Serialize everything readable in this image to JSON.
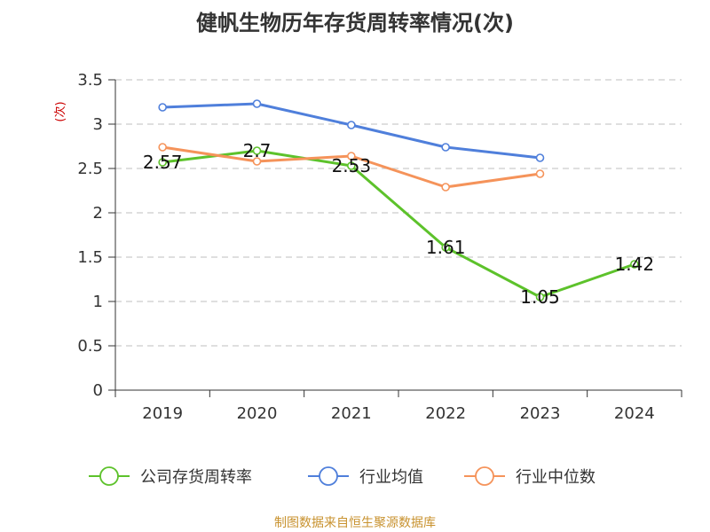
{
  "chart_data": {
    "type": "line",
    "title": "健帆生物历年存货周转率情况(次)",
    "unit_label": "(次)",
    "categories": [
      "2019",
      "2020",
      "2021",
      "2022",
      "2023",
      "2024"
    ],
    "yticks": [
      "0",
      "0.5",
      "1",
      "1.5",
      "2",
      "2.5",
      "3",
      "3.5"
    ],
    "ylim": [
      0,
      3.5
    ],
    "grid": true,
    "legend_position": "bottom",
    "series": [
      {
        "name": "公司存货周转率",
        "color": "#5dc22b",
        "values": [
          2.57,
          2.7,
          2.53,
          1.61,
          1.05,
          1.42
        ],
        "labels": [
          "2.57",
          "2.7",
          "2.53",
          "1.61",
          "1.05",
          "1.42"
        ]
      },
      {
        "name": "行业均值",
        "color": "#4f7fdb",
        "values": [
          3.19,
          3.23,
          2.99,
          2.74,
          2.62,
          null
        ]
      },
      {
        "name": "行业中位数",
        "color": "#f5935a",
        "values": [
          2.74,
          2.58,
          2.64,
          2.29,
          2.44,
          null
        ]
      }
    ]
  },
  "source": "制图数据来自恒生聚源数据库"
}
